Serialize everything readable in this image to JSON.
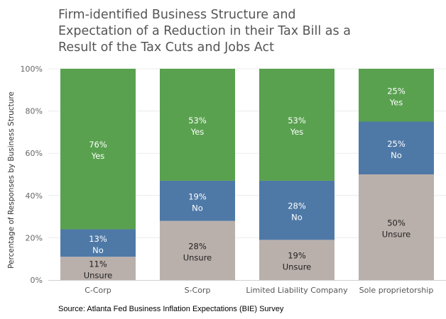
{
  "chart_data": {
    "type": "bar",
    "stacked": true,
    "title_lines": [
      "Firm-identified Business Structure and",
      "Expectation of a Reduction in their Tax Bill as a",
      "Result of the Tax Cuts and Jobs Act"
    ],
    "ylabel": "Percentage of Responses by Business Structure",
    "xlabel": "",
    "ylim": [
      0,
      100
    ],
    "yticks": [
      "0%",
      "20%",
      "40%",
      "60%",
      "80%",
      "100%"
    ],
    "grid": true,
    "categories": [
      "C-Corp",
      "S-Corp",
      "Limited Liability Company",
      "Sole proprietorship"
    ],
    "series": [
      {
        "name": "Unsure",
        "color": "#bab0ab",
        "values": [
          11,
          28,
          19,
          50
        ],
        "labels": [
          "11%",
          "28%",
          "19%",
          "50%"
        ],
        "label_color": "#222222"
      },
      {
        "name": "No",
        "color": "#4e79a7",
        "values": [
          13,
          19,
          28,
          25
        ],
        "labels": [
          "13%",
          "19%",
          "28%",
          "25%"
        ],
        "label_color": "#ffffff"
      },
      {
        "name": "Yes",
        "color": "#59a14f",
        "values": [
          76,
          53,
          53,
          25
        ],
        "labels": [
          "76%",
          "53%",
          "53%",
          "25%"
        ],
        "label_color": "#ffffff"
      }
    ]
  },
  "source": "Source: Atlanta Fed Business Inflation Expectations (BIE) Survey"
}
